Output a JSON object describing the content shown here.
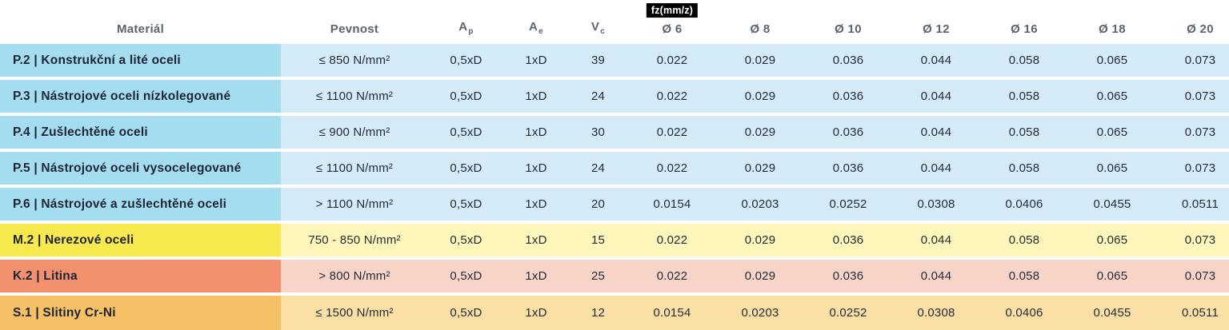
{
  "table": {
    "fz_tag": "fz(mm/z)",
    "headers": {
      "material": "Materiál",
      "pevnost": "Pevnost",
      "ap_base": "A",
      "ap_sub": "p",
      "ae_base": "A",
      "ae_sub": "e",
      "vc_base": "V",
      "vc_sub": "c",
      "diameters": [
        "Ø 6",
        "Ø 8",
        "Ø 10",
        "Ø 12",
        "Ø 16",
        "Ø 18",
        "Ø 20"
      ]
    },
    "colors": {
      "header_text": "#5b636d",
      "row_text": "#242c39",
      "material_text": "#1d2433",
      "tag_bg": "#000000",
      "tag_text": "#ffffff",
      "blue": {
        "main": "#a5ddf0",
        "light": "#d5ecf8"
      },
      "yellow": {
        "main": "#f8e94e",
        "light": "#fdf6ba"
      },
      "salmon": {
        "main": "#f2916e",
        "light": "#f8d5c8"
      },
      "orange": {
        "main": "#f6c066",
        "light": "#fbe0a6"
      }
    },
    "rows": [
      {
        "group": "blue",
        "material": "P.2 | Konstrukční a lité oceli",
        "pevnost": "≤ 850 N/mm²",
        "ap": "0,5xD",
        "ae": "1xD",
        "vc": "39",
        "fz": [
          "0.022",
          "0.029",
          "0.036",
          "0.044",
          "0.058",
          "0.065",
          "0.073"
        ]
      },
      {
        "group": "blue",
        "material": "P.3 | Nástrojové oceli nízkolegované",
        "pevnost": "≤ 1100 N/mm²",
        "ap": "0,5xD",
        "ae": "1xD",
        "vc": "24",
        "fz": [
          "0.022",
          "0.029",
          "0.036",
          "0.044",
          "0.058",
          "0.065",
          "0.073"
        ]
      },
      {
        "group": "blue",
        "material": "P.4 | Zušlechtěné oceli",
        "pevnost": "≤ 900 N/mm²",
        "ap": "0,5xD",
        "ae": "1xD",
        "vc": "30",
        "fz": [
          "0.022",
          "0.029",
          "0.036",
          "0.044",
          "0.058",
          "0.065",
          "0.073"
        ]
      },
      {
        "group": "blue",
        "material": "P.5 | Nástrojové oceli vysocelegované",
        "pevnost": "≤ 1100 N/mm²",
        "ap": "0,5xD",
        "ae": "1xD",
        "vc": "24",
        "fz": [
          "0.022",
          "0.029",
          "0.036",
          "0.044",
          "0.058",
          "0.065",
          "0.073"
        ]
      },
      {
        "group": "blue",
        "material": "P.6 | Nástrojové a zušlechtěné oceli",
        "pevnost": "> 1100 N/mm²",
        "ap": "0,5xD",
        "ae": "1xD",
        "vc": "20",
        "fz": [
          "0.0154",
          "0.0203",
          "0.0252",
          "0.0308",
          "0.0406",
          "0.0455",
          "0.0511"
        ]
      },
      {
        "group": "yellow",
        "material": "M.2 | Nerezové oceli",
        "pevnost": "750 - 850 N/mm²",
        "ap": "0,5xD",
        "ae": "1xD",
        "vc": "15",
        "fz": [
          "0.022",
          "0.029",
          "0.036",
          "0.044",
          "0.058",
          "0.065",
          "0.073"
        ]
      },
      {
        "group": "salmon",
        "material": "K.2 | Litina",
        "pevnost": "> 800 N/mm²",
        "ap": "0,5xD",
        "ae": "1xD",
        "vc": "25",
        "fz": [
          "0.022",
          "0.029",
          "0.036",
          "0.044",
          "0.058",
          "0.065",
          "0.073"
        ]
      },
      {
        "group": "orange",
        "material": "S.1 | Slitiny Cr-Ni",
        "pevnost": "≤ 1500 N/mm²",
        "ap": "0,5xD",
        "ae": "1xD",
        "vc": "12",
        "fz": [
          "0.0154",
          "0.0203",
          "0.0252",
          "0.0308",
          "0.0406",
          "0.0455",
          "0.0511"
        ]
      }
    ]
  }
}
